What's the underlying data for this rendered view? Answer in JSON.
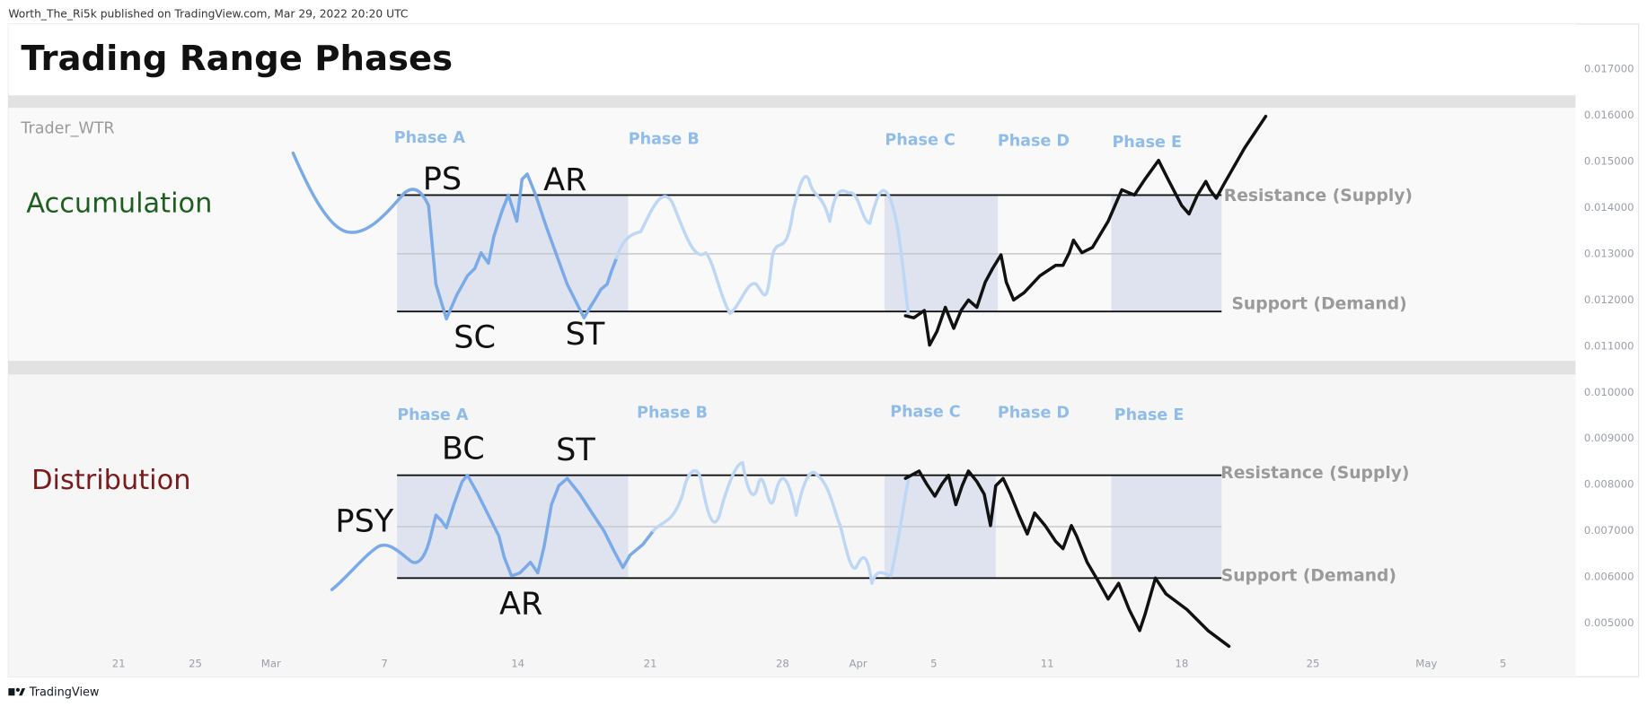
{
  "header": {
    "publisher": "Worth_The_Ri5k published on TradingView.com, Mar 29, 2022 20:20 UTC"
  },
  "title": "Trading Range Phases",
  "watermark": "Trader_WTR",
  "panels": [
    {
      "name": "Accumulation",
      "phases": [
        "Phase A",
        "Phase B",
        "Phase C",
        "Phase D",
        "Phase E"
      ],
      "events": [
        "PS",
        "SC",
        "AR",
        "ST"
      ],
      "levels": [
        "Resistance (Supply)",
        "Support (Demand)"
      ]
    },
    {
      "name": "Distribution",
      "phases": [
        "Phase A",
        "Phase B",
        "Phase C",
        "Phase D",
        "Phase E"
      ],
      "events": [
        "BC",
        "ST",
        "PSY",
        "AR"
      ],
      "levels": [
        "Resistance (Supply)",
        "Support (Demand)"
      ]
    }
  ],
  "price_axis": [
    "0.017000",
    "0.016000",
    "0.015000",
    "0.014000",
    "0.013000",
    "0.012000",
    "0.011000",
    "0.010000",
    "0.009000",
    "0.008000",
    "0.007000",
    "0.006000",
    "0.005000"
  ],
  "time_axis": [
    "21",
    "25",
    "Mar",
    "7",
    "14",
    "21",
    "28",
    "Apr",
    "5",
    "11",
    "18",
    "25",
    "May",
    "5"
  ],
  "footer": "TradingView"
}
